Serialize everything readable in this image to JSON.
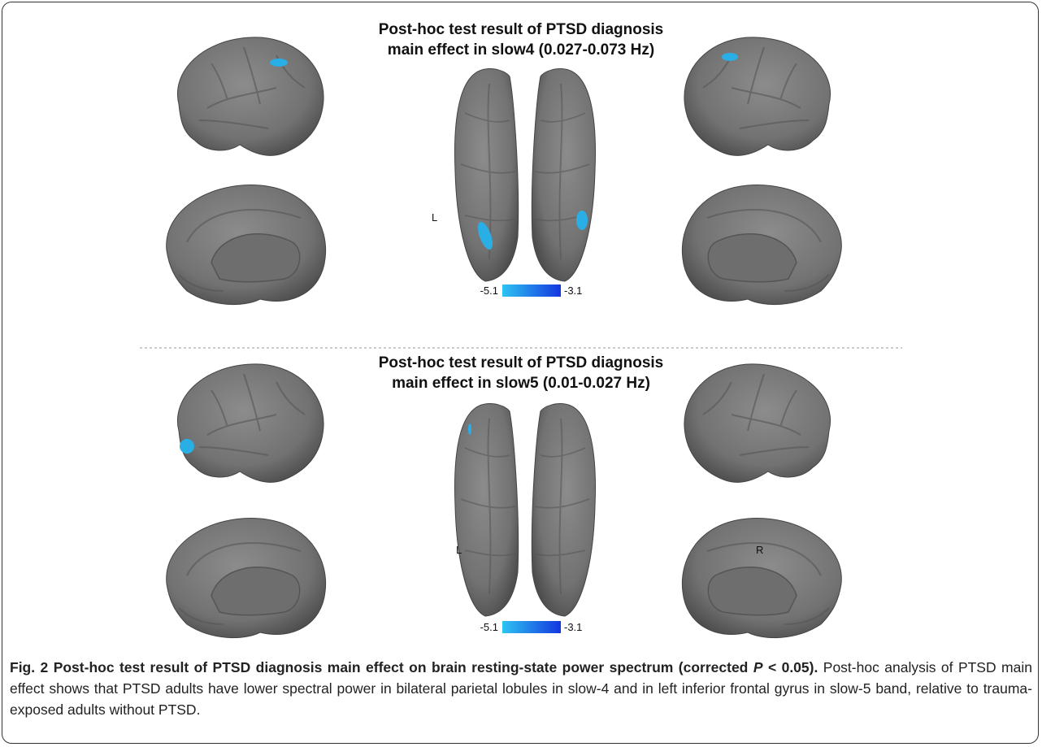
{
  "panels": [
    {
      "title_lines": [
        "Post-hoc test result of PTSD diagnosis",
        "main effect in slow4 (0.027-0.073 Hz)"
      ],
      "side_labels": {
        "left": "L"
      },
      "colorbar": {
        "min_label": "-5.1",
        "max_label": "-3.1"
      }
    },
    {
      "title_lines": [
        "Post-hoc test result of PTSD diagnosis",
        "main effect in slow5 (0.01-0.027 Hz)"
      ],
      "side_labels": {
        "left": "L",
        "right": "R"
      },
      "colorbar": {
        "min_label": "-5.1",
        "max_label": "-3.1"
      }
    }
  ],
  "caption": {
    "title_start": "Fig. 2 Post-hoc test result of PTSD diagnosis main effect on brain resting-state power spectrum (corrected",
    "p_symbol": "P",
    "title_end": "< 0.05).",
    "text": "Post-hoc analysis of PTSD main effect shows that PTSD adults have lower spectral power in bilateral parietal lobules in slow-4 and in left inferior frontal gyrus in slow-5 band, relative to trauma-exposed adults without PTSD."
  }
}
